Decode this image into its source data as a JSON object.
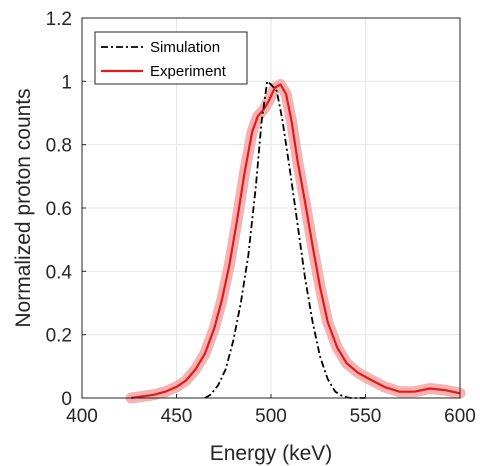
{
  "chart_data": {
    "type": "line",
    "xlabel": "Energy (keV)",
    "ylabel": "Normalized proton counts",
    "xlim": [
      400,
      600
    ],
    "ylim": [
      0,
      1.2
    ],
    "xticks": [
      400,
      450,
      500,
      550,
      600
    ],
    "yticks": [
      0,
      0.2,
      0.4,
      0.6,
      0.8,
      1,
      1.2
    ],
    "grid": true,
    "legend_position": "top-left",
    "series": [
      {
        "name": "Simulation",
        "color": "#000000",
        "style": "dash-dot",
        "x": [
          465,
          468,
          472,
          476,
          480,
          484,
          488,
          492,
          495,
          498,
          500,
          503,
          506,
          510,
          514,
          518,
          522,
          526,
          530,
          534,
          538,
          542,
          546,
          550
        ],
        "y": [
          0,
          0.01,
          0.04,
          0.09,
          0.18,
          0.3,
          0.45,
          0.67,
          0.87,
          1.0,
          0.99,
          0.97,
          0.88,
          0.72,
          0.55,
          0.38,
          0.24,
          0.13,
          0.06,
          0.02,
          0.005,
          0,
          0,
          0
        ]
      },
      {
        "name": "Experiment",
        "color": "#e31a1c",
        "band_color": "#f4a3a3",
        "style": "solid",
        "x": [
          426,
          432,
          438,
          444,
          450,
          455,
          460,
          465,
          470,
          474,
          478,
          482,
          486,
          490,
          493,
          496,
          499,
          502,
          505,
          508,
          511,
          514,
          518,
          522,
          526,
          530,
          535,
          540,
          546,
          552,
          560,
          568,
          576,
          584,
          592,
          600
        ],
        "y": [
          0,
          0.005,
          0.01,
          0.02,
          0.035,
          0.055,
          0.09,
          0.14,
          0.22,
          0.31,
          0.42,
          0.56,
          0.71,
          0.84,
          0.89,
          0.91,
          0.94,
          0.98,
          0.99,
          0.96,
          0.87,
          0.75,
          0.62,
          0.48,
          0.35,
          0.24,
          0.16,
          0.11,
          0.08,
          0.06,
          0.035,
          0.02,
          0.02,
          0.03,
          0.025,
          0.015
        ]
      }
    ]
  }
}
